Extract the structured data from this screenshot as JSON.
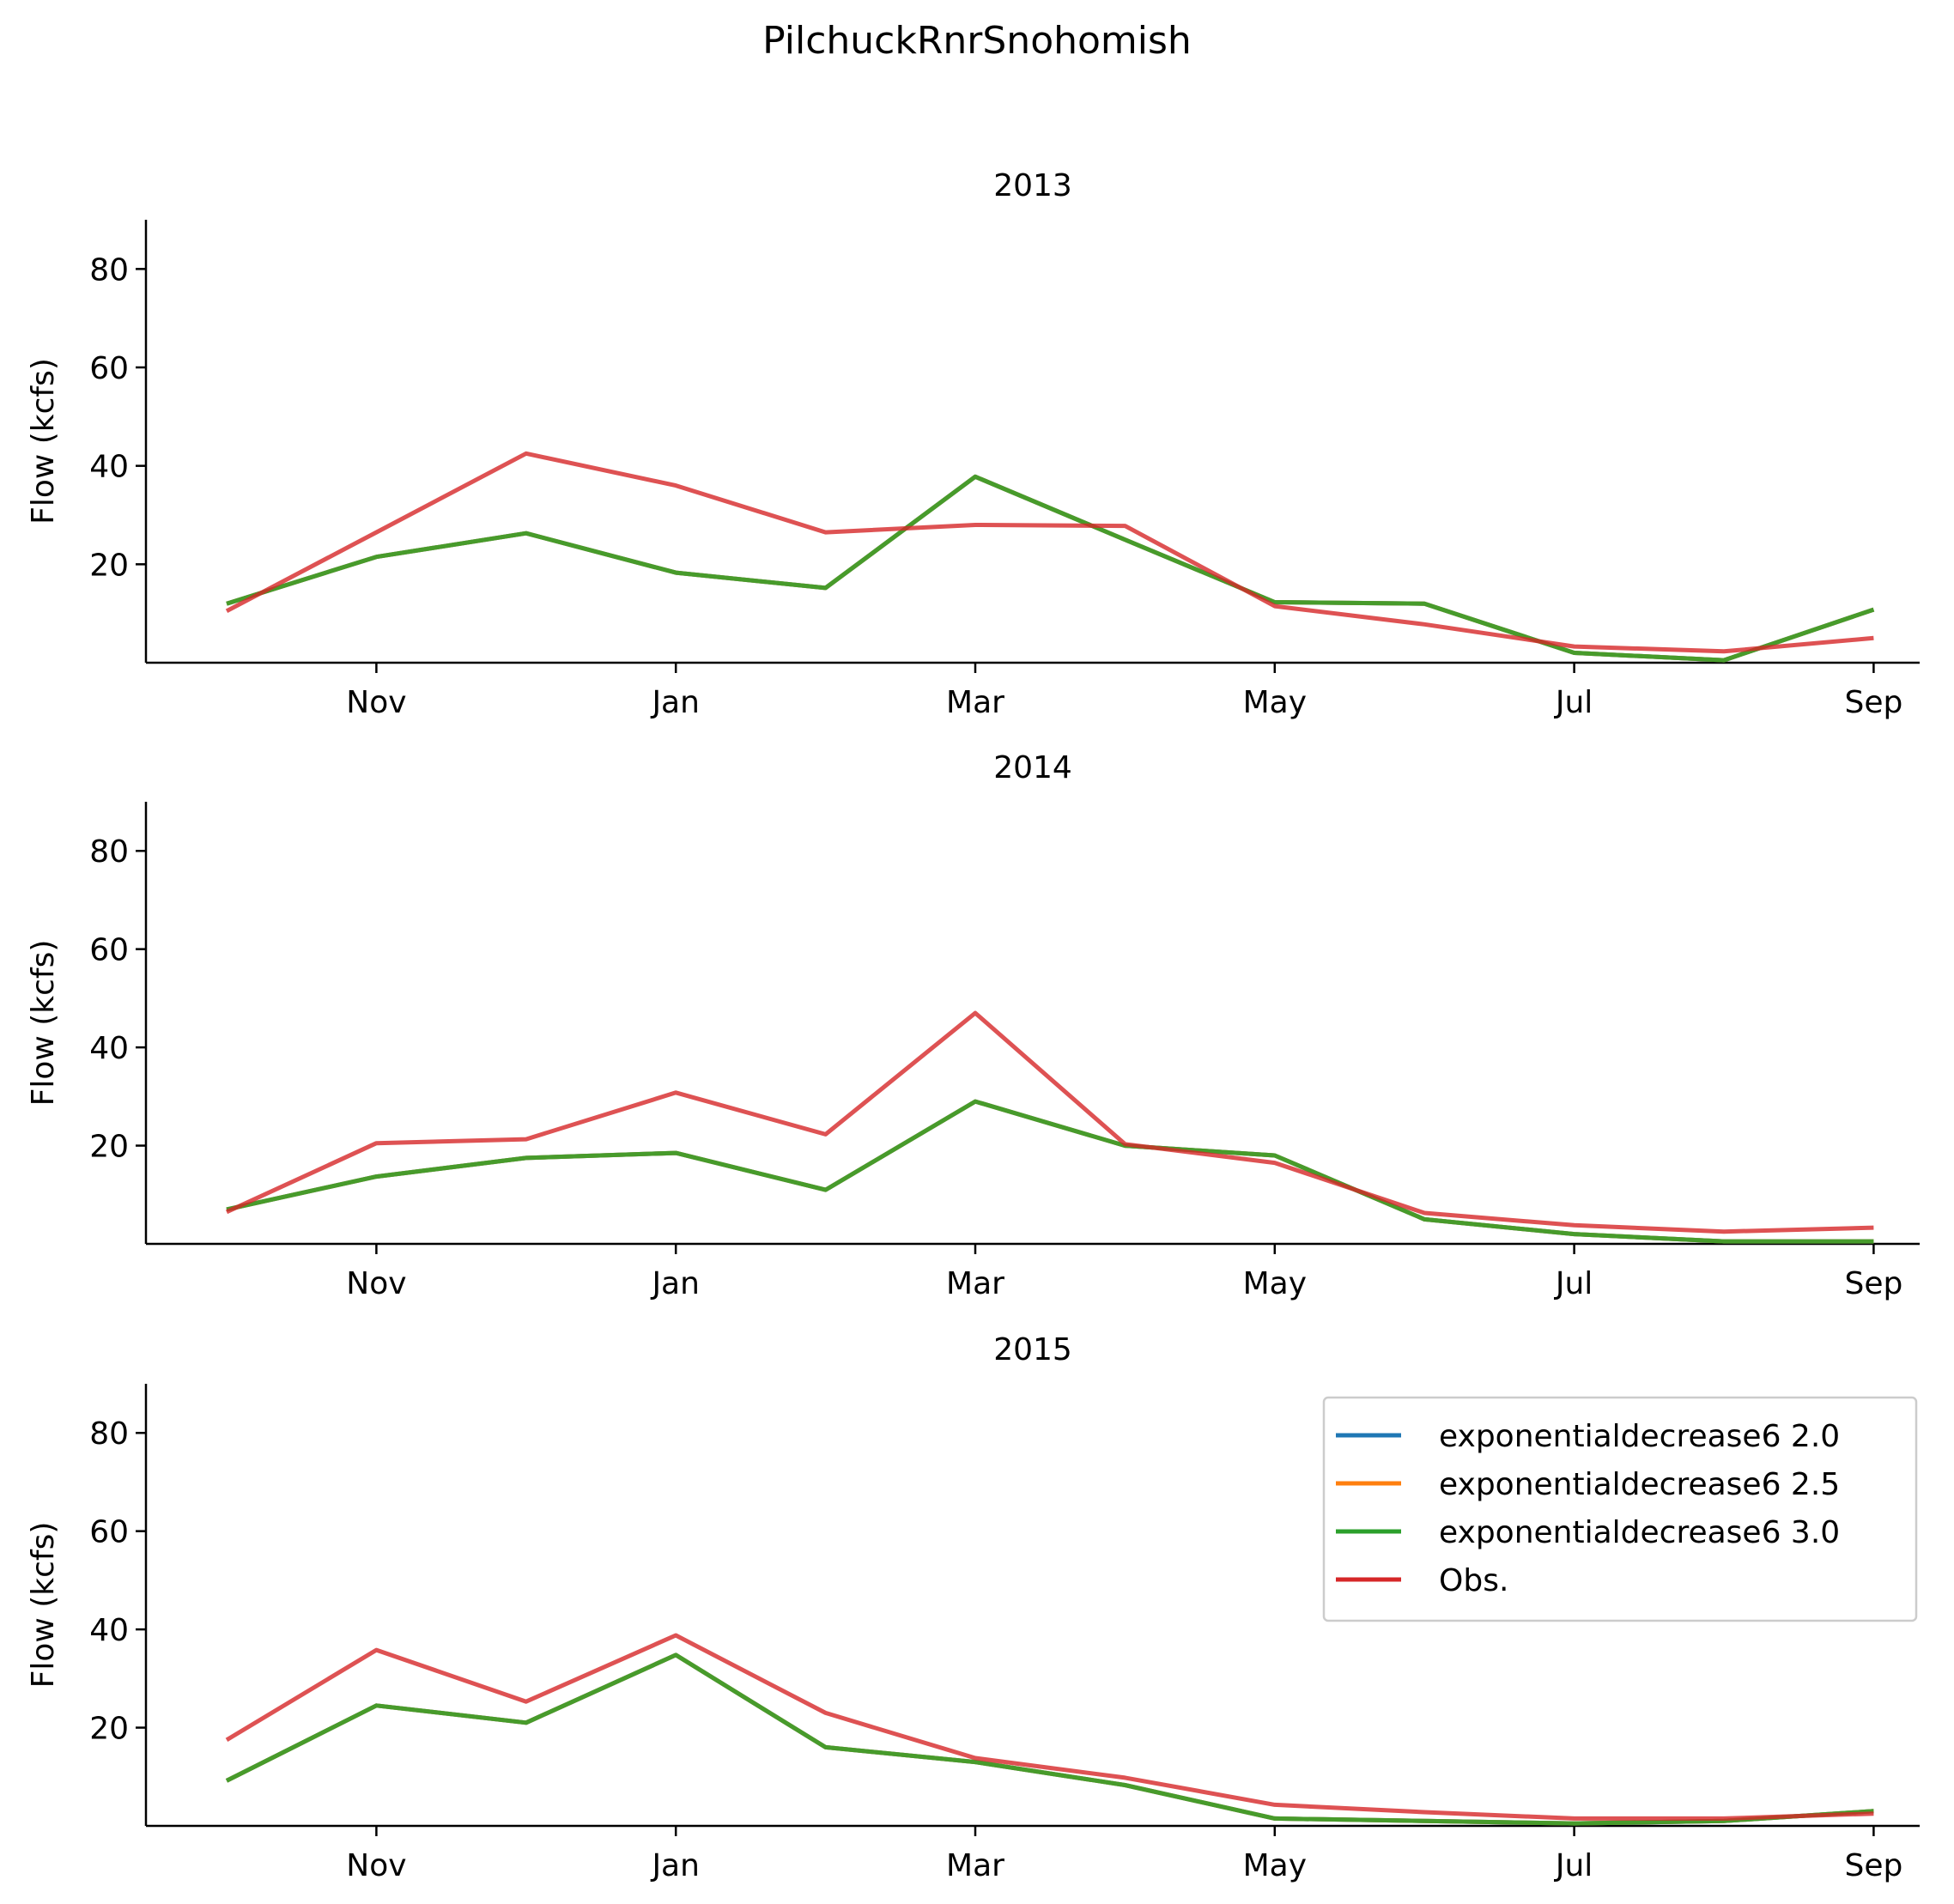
{
  "figure": {
    "title": "PilchuckRnrSnohomish"
  },
  "colors": {
    "exponentialdecrease6 2.0": "#1f77b4",
    "exponentialdecrease6 2.5": "#ff7f0e",
    "exponentialdecrease6 3.0": "#2ca02c",
    "Obs.": "#d62728"
  },
  "legend": {
    "placement": "upper-right of bottom panel",
    "entries": [
      "exponentialdecrease6 2.0",
      "exponentialdecrease6 2.5",
      "exponentialdecrease6 3.0",
      "Obs."
    ]
  },
  "chart_data": [
    {
      "type": "line",
      "title": "2013",
      "ylabel": "Flow (kcfs)",
      "xlabel": "",
      "ylim": [
        0,
        90
      ],
      "yticks": [
        20,
        40,
        60,
        80
      ],
      "xtick_labels": [
        "Nov",
        "Jan",
        "Mar",
        "May",
        "Jul",
        "Sep"
      ],
      "x": [
        "Oct",
        "Nov",
        "Dec",
        "Jan",
        "Feb",
        "Mar",
        "Apr",
        "May",
        "Jun",
        "Jul",
        "Aug",
        "Sep"
      ],
      "series": [
        {
          "name": "exponentialdecrease6 2.0",
          "values": [
            12.0,
            21.5,
            26.3,
            18.3,
            15.2,
            37.8,
            25.0,
            12.3,
            12.0,
            2.0,
            0.5,
            10.8
          ]
        },
        {
          "name": "exponentialdecrease6 2.5",
          "values": [
            12.0,
            21.5,
            26.3,
            18.3,
            15.2,
            37.8,
            25.0,
            12.3,
            12.0,
            2.0,
            0.5,
            10.8
          ]
        },
        {
          "name": "exponentialdecrease6 3.0",
          "values": [
            12.0,
            21.5,
            26.3,
            18.3,
            15.2,
            37.8,
            25.0,
            12.3,
            12.0,
            2.0,
            0.5,
            10.8
          ]
        },
        {
          "name": "Obs.",
          "values": [
            10.5,
            26.5,
            42.5,
            36.0,
            26.5,
            28.0,
            27.8,
            11.5,
            7.8,
            3.3,
            2.3,
            5.0
          ]
        }
      ]
    },
    {
      "type": "line",
      "title": "2014",
      "ylabel": "Flow (kcfs)",
      "xlabel": "",
      "ylim": [
        0,
        90
      ],
      "yticks": [
        20,
        40,
        60,
        80
      ],
      "xtick_labels": [
        "Nov",
        "Jan",
        "Mar",
        "May",
        "Jul",
        "Sep"
      ],
      "x": [
        "Oct",
        "Nov",
        "Dec",
        "Jan",
        "Feb",
        "Mar",
        "Apr",
        "May",
        "Jun",
        "Jul",
        "Aug",
        "Sep"
      ],
      "series": [
        {
          "name": "exponentialdecrease6 2.0",
          "values": [
            7.0,
            13.7,
            17.5,
            18.5,
            11.0,
            29.0,
            20.0,
            18.0,
            5.0,
            2.0,
            0.5,
            0.5
          ]
        },
        {
          "name": "exponentialdecrease6 2.5",
          "values": [
            7.0,
            13.7,
            17.5,
            18.5,
            11.0,
            29.0,
            20.0,
            18.0,
            5.0,
            2.0,
            0.5,
            0.5
          ]
        },
        {
          "name": "exponentialdecrease6 3.0",
          "values": [
            7.0,
            13.7,
            17.5,
            18.5,
            11.0,
            29.0,
            20.0,
            18.0,
            5.0,
            2.0,
            0.5,
            0.5
          ]
        },
        {
          "name": "Obs.",
          "values": [
            6.5,
            20.5,
            21.3,
            30.8,
            22.3,
            47.0,
            20.3,
            16.5,
            6.3,
            3.8,
            2.5,
            3.3
          ]
        }
      ]
    },
    {
      "type": "line",
      "title": "2015",
      "ylabel": "Flow (kcfs)",
      "xlabel": "",
      "ylim": [
        0,
        90
      ],
      "yticks": [
        20,
        40,
        60,
        80
      ],
      "xtick_labels": [
        "Nov",
        "Jan",
        "Mar",
        "May",
        "Jul",
        "Sep"
      ],
      "x": [
        "Oct",
        "Nov",
        "Dec",
        "Jan",
        "Feb",
        "Mar",
        "Apr",
        "May",
        "Jun",
        "Jul",
        "Aug",
        "Sep"
      ],
      "series": [
        {
          "name": "exponentialdecrease6 2.0",
          "values": [
            9.2,
            24.5,
            21.0,
            34.8,
            16.0,
            13.0,
            8.3,
            1.5,
            1.0,
            0.5,
            1.0,
            3.0
          ]
        },
        {
          "name": "exponentialdecrease6 2.5",
          "values": [
            9.2,
            24.5,
            21.0,
            34.8,
            16.0,
            13.0,
            8.3,
            1.5,
            1.0,
            0.5,
            1.0,
            3.0
          ]
        },
        {
          "name": "exponentialdecrease6 3.0",
          "values": [
            9.2,
            24.5,
            21.0,
            34.8,
            16.0,
            13.0,
            8.3,
            1.5,
            1.0,
            0.5,
            1.0,
            3.0
          ]
        },
        {
          "name": "Obs.",
          "values": [
            17.5,
            35.8,
            25.3,
            38.8,
            23.0,
            13.8,
            9.8,
            4.3,
            2.8,
            1.5,
            1.5,
            2.5
          ]
        }
      ]
    }
  ]
}
